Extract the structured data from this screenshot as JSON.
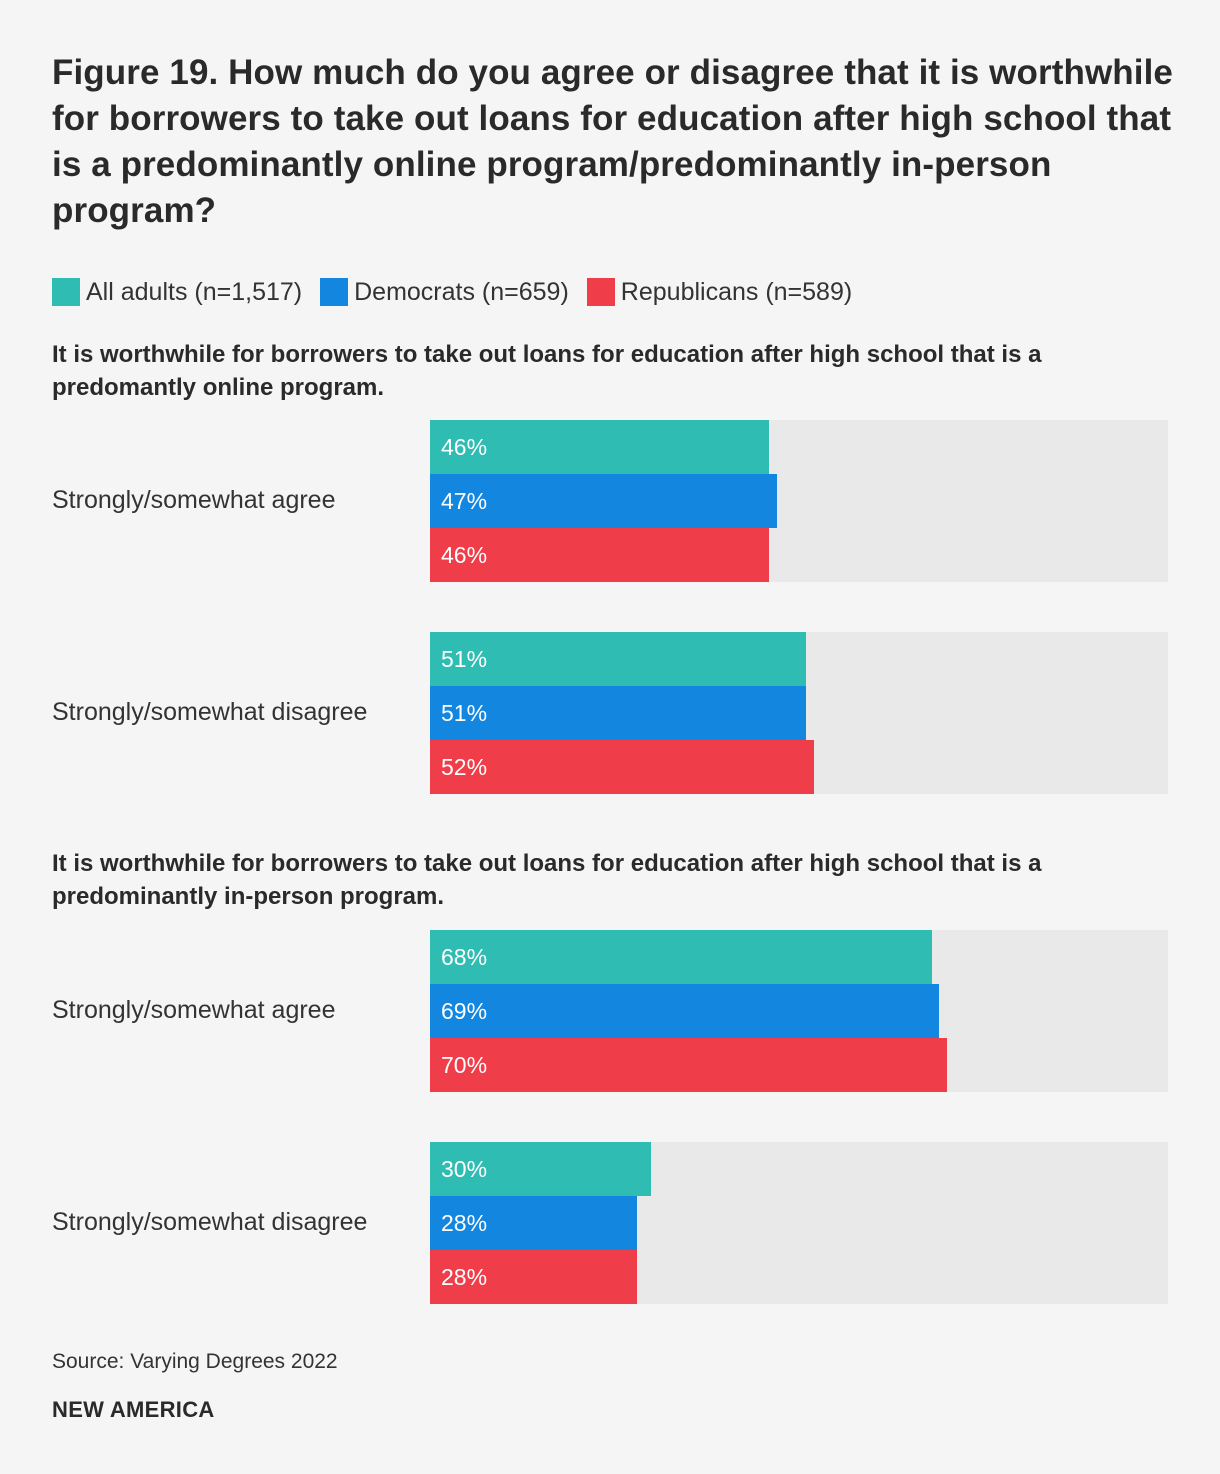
{
  "chart_data": {
    "type": "bar",
    "orientation": "horizontal",
    "title": "Figure 19. How much do you agree or disagree that it is worthwhile for borrowers to take out loans for education after high school that is a predominantly online program/predominantly in-person program?",
    "legend": [
      {
        "name": "All adults (n=1,517)",
        "color": "#2fbcb2"
      },
      {
        "name": "Democrats (n=659)",
        "color": "#1387e0"
      },
      {
        "name": "Republicans (n=589)",
        "color": "#f03d4a"
      }
    ],
    "xlim": [
      0,
      100
    ],
    "unit": "%",
    "sections": [
      {
        "title": "It is worthwhile for borrowers to take out loans for education after high school that is a predomantly online program.",
        "groups": [
          {
            "label": "Strongly/somewhat agree",
            "values": [
              46,
              47,
              46
            ]
          },
          {
            "label": "Strongly/somewhat disagree",
            "values": [
              51,
              51,
              52
            ]
          }
        ]
      },
      {
        "title": "It is worthwhile for borrowers to take out loans for education after high school that is a predominantly in-person program.",
        "groups": [
          {
            "label": "Strongly/somewhat agree",
            "values": [
              68,
              69,
              70
            ]
          },
          {
            "label": "Strongly/somewhat disagree",
            "values": [
              30,
              28,
              28
            ]
          }
        ]
      }
    ]
  },
  "footer": {
    "source": "Source: Varying Degrees 2022",
    "brand": "NEW AMERICA"
  }
}
